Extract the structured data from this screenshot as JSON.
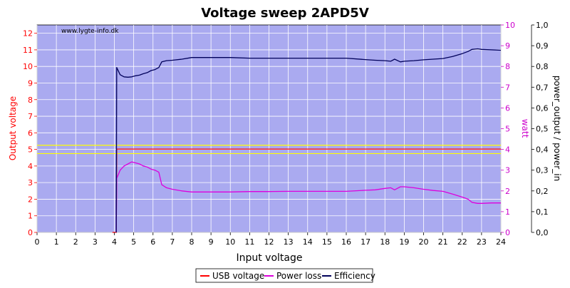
{
  "chart_data": {
    "type": "line",
    "title": "Voltage sweep 2APD5V",
    "xlabel": "Input voltage",
    "ylabel_left": "Output voltage",
    "ylabel_right1": "watt",
    "ylabel_right2": "power_output / power_in",
    "watermark": "www.lygte-info.dk",
    "xlim": [
      0,
      24
    ],
    "ylim_left": [
      0,
      12.5
    ],
    "ylim_right1": [
      0,
      10
    ],
    "ylim_right2": [
      0,
      1.0
    ],
    "x_ticks": [
      "0",
      "1",
      "2",
      "3",
      "4",
      "5",
      "6",
      "7",
      "8",
      "9",
      "10",
      "11",
      "12",
      "13",
      "14",
      "15",
      "16",
      "17",
      "18",
      "19",
      "20",
      "21",
      "22",
      "23",
      "24"
    ],
    "y_left_ticks": [
      "0",
      "1",
      "2",
      "3",
      "4",
      "5",
      "6",
      "7",
      "8",
      "9",
      "10",
      "11",
      "12"
    ],
    "y_right1_ticks": [
      "0",
      "1",
      "2",
      "3",
      "4",
      "5",
      "6",
      "7",
      "8",
      "9",
      "10"
    ],
    "y_right2_ticks": [
      "0,0",
      "0,1",
      "0,2",
      "0,3",
      "0,4",
      "0,5",
      "0,6",
      "0,7",
      "0,8",
      "0,9",
      "1,0"
    ],
    "grid": true,
    "legend_position": "bottom",
    "reference_lines": [
      {
        "axis": "left",
        "value": 5.25,
        "color": "#ffff00"
      },
      {
        "axis": "left",
        "value": 4.75,
        "color": "#ffff00"
      }
    ],
    "series": [
      {
        "name": "USB voltage",
        "axis": "left",
        "color": "#ff0000",
        "points": [
          [
            3.9,
            0.0
          ],
          [
            4.1,
            0.0
          ],
          [
            4.12,
            5.02
          ],
          [
            24,
            5.02
          ]
        ]
      },
      {
        "name": "Power loss",
        "axis": "right1",
        "color": "#dd00dd",
        "points": [
          [
            4.1,
            0.0
          ],
          [
            4.12,
            2.6
          ],
          [
            4.3,
            3.0
          ],
          [
            4.5,
            3.2
          ],
          [
            4.7,
            3.3
          ],
          [
            4.9,
            3.4
          ],
          [
            5.1,
            3.35
          ],
          [
            5.3,
            3.3
          ],
          [
            5.5,
            3.2
          ],
          [
            5.7,
            3.15
          ],
          [
            5.9,
            3.05
          ],
          [
            6.1,
            3.0
          ],
          [
            6.3,
            2.9
          ],
          [
            6.45,
            2.3
          ],
          [
            6.7,
            2.15
          ],
          [
            7.0,
            2.08
          ],
          [
            7.5,
            2.0
          ],
          [
            8.0,
            1.95
          ],
          [
            9,
            1.95
          ],
          [
            10,
            1.95
          ],
          [
            11,
            1.97
          ],
          [
            12,
            1.97
          ],
          [
            13,
            1.98
          ],
          [
            14,
            1.98
          ],
          [
            15,
            1.98
          ],
          [
            16,
            1.98
          ],
          [
            17,
            2.03
          ],
          [
            17.5,
            2.05
          ],
          [
            18,
            2.12
          ],
          [
            18.3,
            2.15
          ],
          [
            18.5,
            2.05
          ],
          [
            18.8,
            2.2
          ],
          [
            19.0,
            2.2
          ],
          [
            19.5,
            2.15
          ],
          [
            20,
            2.08
          ],
          [
            20.5,
            2.02
          ],
          [
            21,
            1.98
          ],
          [
            21.5,
            1.85
          ],
          [
            22,
            1.7
          ],
          [
            22.3,
            1.6
          ],
          [
            22.5,
            1.45
          ],
          [
            22.8,
            1.4
          ],
          [
            23,
            1.4
          ],
          [
            23.5,
            1.42
          ],
          [
            24,
            1.42
          ]
        ]
      },
      {
        "name": "Efficiency",
        "axis": "right2",
        "color": "#00005a",
        "points": [
          [
            4.1,
            0.0
          ],
          [
            4.12,
            0.795
          ],
          [
            4.3,
            0.76
          ],
          [
            4.5,
            0.75
          ],
          [
            4.7,
            0.748
          ],
          [
            4.9,
            0.75
          ],
          [
            5.1,
            0.755
          ],
          [
            5.3,
            0.758
          ],
          [
            5.5,
            0.765
          ],
          [
            5.7,
            0.77
          ],
          [
            5.9,
            0.78
          ],
          [
            6.1,
            0.785
          ],
          [
            6.3,
            0.795
          ],
          [
            6.45,
            0.822
          ],
          [
            6.7,
            0.828
          ],
          [
            7.0,
            0.83
          ],
          [
            7.5,
            0.835
          ],
          [
            8.0,
            0.843
          ],
          [
            9,
            0.843
          ],
          [
            10,
            0.843
          ],
          [
            11,
            0.84
          ],
          [
            12,
            0.84
          ],
          [
            13,
            0.84
          ],
          [
            14,
            0.84
          ],
          [
            15,
            0.84
          ],
          [
            16,
            0.84
          ],
          [
            17,
            0.833
          ],
          [
            17.5,
            0.83
          ],
          [
            18,
            0.828
          ],
          [
            18.3,
            0.825
          ],
          [
            18.5,
            0.835
          ],
          [
            18.8,
            0.822
          ],
          [
            19.0,
            0.825
          ],
          [
            19.5,
            0.828
          ],
          [
            20,
            0.832
          ],
          [
            20.5,
            0.835
          ],
          [
            21,
            0.838
          ],
          [
            21.5,
            0.848
          ],
          [
            22,
            0.862
          ],
          [
            22.3,
            0.872
          ],
          [
            22.5,
            0.882
          ],
          [
            22.8,
            0.885
          ],
          [
            23,
            0.882
          ],
          [
            23.5,
            0.88
          ],
          [
            24,
            0.878
          ]
        ]
      }
    ]
  }
}
